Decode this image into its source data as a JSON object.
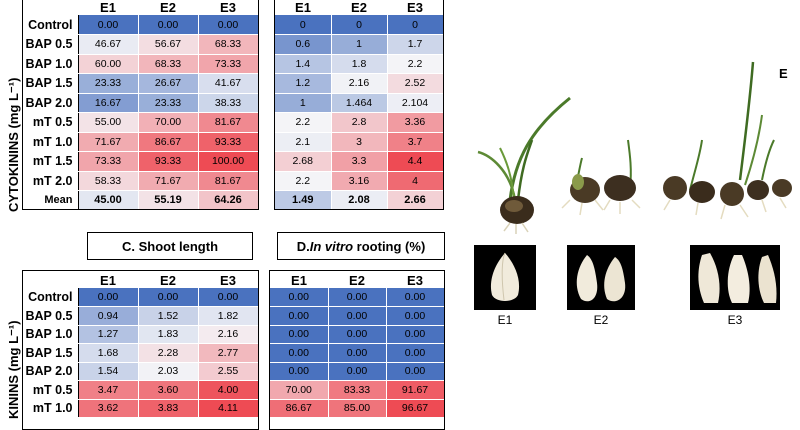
{
  "colors": {
    "low": "#4a72bf",
    "mid": "#f4f4f7",
    "high": "#ee4b54"
  },
  "row_labels": [
    "Control",
    "BAP 0.5",
    "BAP 1.0",
    "BAP 1.5",
    "BAP 2.0",
    "mT 0.5",
    "mT 1.0",
    "mT 1.5",
    "mT 2.0",
    "Mean"
  ],
  "columns": [
    "E1",
    "E2",
    "E3"
  ],
  "y_axis_label_top": "CYTOKININS (mg L⁻¹)",
  "y_axis_label_bottom": "KININS (mg L⁻¹)",
  "tableA": {
    "rows": [
      [
        "0.00",
        "0.00",
        "0.00"
      ],
      [
        "46.67",
        "56.67",
        "68.33"
      ],
      [
        "60.00",
        "68.33",
        "73.33"
      ],
      [
        "23.33",
        "26.67",
        "41.67"
      ],
      [
        "16.67",
        "23.33",
        "38.33"
      ],
      [
        "55.00",
        "70.00",
        "81.67"
      ],
      [
        "71.67",
        "86.67",
        "93.33"
      ],
      [
        "73.33",
        "93.33",
        "100.00"
      ],
      [
        "58.33",
        "71.67",
        "81.67"
      ],
      [
        "45.00",
        "55.19",
        "64.26"
      ]
    ]
  },
  "tableB": {
    "rows": [
      [
        "0",
        "0",
        "0"
      ],
      [
        "0.6",
        "1",
        "1.7"
      ],
      [
        "1.4",
        "1.8",
        "2.2"
      ],
      [
        "1.2",
        "2.16",
        "2.52"
      ],
      [
        "1",
        "1.464",
        "2.104"
      ],
      [
        "2.2",
        "2.8",
        "3.36"
      ],
      [
        "2.1",
        "3",
        "3.7"
      ],
      [
        "2.68",
        "3.3",
        "4.4"
      ],
      [
        "2.2",
        "3.16",
        "4"
      ],
      [
        "1.49",
        "2.08",
        "2.66"
      ]
    ]
  },
  "tableC": {
    "title": "C. Shoot length",
    "rows": [
      [
        "0.00",
        "0.00",
        "0.00"
      ],
      [
        "0.94",
        "1.52",
        "1.82"
      ],
      [
        "1.27",
        "1.83",
        "2.16"
      ],
      [
        "1.68",
        "2.28",
        "2.77"
      ],
      [
        "1.54",
        "2.03",
        "2.55"
      ],
      [
        "3.47",
        "3.60",
        "4.00"
      ],
      [
        "3.62",
        "3.83",
        "4.11"
      ]
    ]
  },
  "tableD": {
    "title_prefix": "D. ",
    "title_italic": "In vitro",
    "title_suffix": " rooting (%)",
    "rows": [
      [
        "0.00",
        "0.00",
        "0.00"
      ],
      [
        "0.00",
        "0.00",
        "0.00"
      ],
      [
        "0.00",
        "0.00",
        "0.00"
      ],
      [
        "0.00",
        "0.00",
        "0.00"
      ],
      [
        "0.00",
        "0.00",
        "0.00"
      ],
      [
        "70.00",
        "83.33",
        "91.67"
      ],
      [
        "86.67",
        "85.00",
        "96.67"
      ]
    ]
  },
  "photo": {
    "panel_letter": "E",
    "captions": [
      "E1",
      "E2",
      "E3"
    ]
  }
}
